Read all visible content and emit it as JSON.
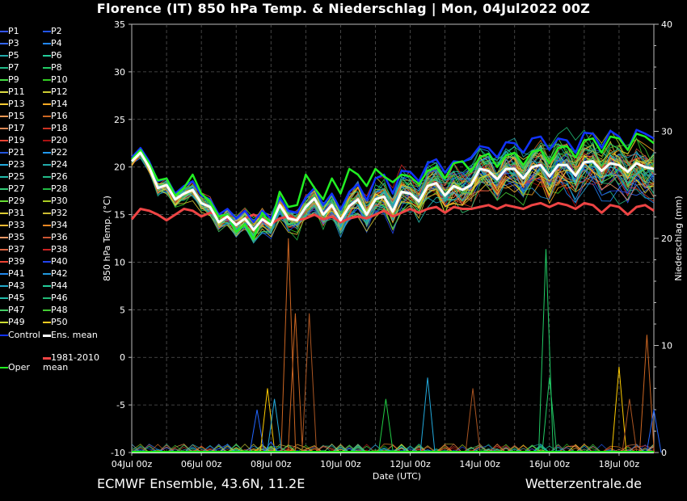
{
  "title": "Florence  (IT)  850 hPa Temp. & Niederschlag | Mon, 04Jul2022 00Z",
  "footer_left": "ECMWF Ensemble, 43.6N, 11.2E",
  "footer_right": "Wetterzentrale.de",
  "chart_data": {
    "type": "line",
    "xlabel": "Date (UTC)",
    "ylabel": "850 hPa Temp. (°C)",
    "y2label": "Niederschlag (mm)",
    "ylim": [
      -10,
      35
    ],
    "y2lim": [
      0,
      40
    ],
    "yticks": [
      "-10",
      "-5",
      "0",
      "5",
      "10",
      "15",
      "20",
      "25",
      "30",
      "35"
    ],
    "y2ticks": [
      "0",
      "10",
      "20",
      "30",
      "40"
    ],
    "xticks": [
      "04Jul 00z",
      "06Jul 00z",
      "08Jul 00z",
      "10Jul 00z",
      "12Jul 00z",
      "14Jul 00z",
      "16Jul 00z",
      "18Jul 00z"
    ],
    "grid": true,
    "x_hours": [
      0,
      6,
      12,
      18,
      24,
      30,
      36,
      42,
      48,
      54,
      60,
      66,
      72,
      78,
      84,
      90,
      96,
      102,
      108,
      114,
      120,
      126,
      132,
      138,
      144,
      150,
      156,
      162,
      168,
      174,
      180,
      186,
      192,
      198,
      204,
      210,
      216,
      222,
      228,
      234,
      240,
      246,
      252,
      258,
      264,
      270,
      276,
      282,
      288,
      294,
      300,
      306,
      312,
      318,
      324,
      330,
      336,
      342,
      348,
      354,
      360
    ],
    "ens_mean": [
      20.6,
      21.5,
      20.0,
      17.8,
      18.1,
      16.6,
      17.2,
      17.6,
      16.2,
      15.8,
      14.2,
      14.8,
      13.9,
      14.6,
      13.4,
      14.5,
      13.9,
      16.0,
      14.6,
      14.4,
      15.8,
      16.7,
      15.0,
      16.0,
      14.4,
      15.9,
      16.6,
      15.0,
      16.6,
      16.9,
      15.3,
      17.4,
      17.2,
      16.4,
      18.0,
      18.3,
      17.0,
      18.0,
      17.6,
      18.1,
      19.8,
      19.6,
      18.7,
      19.8,
      19.8,
      18.8,
      20.0,
      20.2,
      19.0,
      20.2,
      20.2,
      19.1,
      20.5,
      20.6,
      19.6,
      20.4,
      20.2,
      19.5,
      20.4,
      20.0,
      19.8
    ],
    "control": [
      21.0,
      22.0,
      20.6,
      18.5,
      18.8,
      17.2,
      18.0,
      18.5,
      17.0,
      16.6,
      15.0,
      15.6,
      14.6,
      15.4,
      14.2,
      15.4,
      14.6,
      16.8,
      15.4,
      15.2,
      16.8,
      17.8,
      16.0,
      17.2,
      15.5,
      17.4,
      18.2,
      16.5,
      18.8,
      19.2,
      17.2,
      19.6,
      19.5,
      18.5,
      20.4,
      20.8,
      19.4,
      20.6,
      20.5,
      21.0,
      22.2,
      22.0,
      21.0,
      22.6,
      22.5,
      21.5,
      23.0,
      23.2,
      21.8,
      23.0,
      22.8,
      21.5,
      23.6,
      23.5,
      22.0,
      23.8,
      23.2,
      21.8,
      23.9,
      23.5,
      23.0
    ],
    "oper": [
      20.8,
      21.8,
      20.4,
      18.6,
      18.8,
      17.0,
      17.8,
      19.2,
      17.2,
      16.4,
      14.8,
      15.0,
      13.2,
      14.0,
      12.4,
      15.2,
      14.0,
      17.4,
      15.8,
      16.0,
      19.2,
      17.8,
      16.6,
      18.8,
      17.2,
      19.8,
      19.2,
      18.0,
      19.8,
      19.0,
      18.4,
      19.2,
      19.0,
      18.2,
      19.6,
      20.0,
      18.8,
      20.4,
      20.6,
      19.5,
      21.0,
      21.4,
      20.0,
      21.2,
      21.5,
      20.2,
      21.6,
      21.8,
      20.4,
      22.0,
      22.2,
      21.0,
      22.8,
      23.0,
      21.5,
      23.2,
      23.0,
      21.8,
      23.5,
      23.2,
      22.5
    ],
    "clim_1981_2010": [
      14.5,
      15.6,
      15.4,
      15.0,
      14.4,
      15.0,
      15.6,
      15.4,
      14.8,
      15.2,
      15.0,
      14.6,
      14.0,
      14.6,
      15.0,
      14.6,
      14.0,
      14.6,
      14.8,
      14.4,
      14.6,
      15.0,
      14.5,
      14.8,
      14.2,
      14.6,
      14.8,
      14.6,
      15.0,
      15.4,
      14.8,
      15.2,
      15.6,
      15.2,
      15.6,
      15.8,
      15.2,
      15.8,
      15.6,
      15.6,
      15.8,
      16.0,
      15.6,
      16.0,
      15.8,
      15.6,
      16.0,
      16.2,
      15.8,
      16.2,
      16.0,
      15.6,
      16.2,
      16.0,
      15.2,
      16.0,
      15.8,
      15.0,
      15.8,
      16.0,
      15.4
    ],
    "precip_peaks": [
      {
        "day": 7.6,
        "mm": 4,
        "color": "#2266ff"
      },
      {
        "day": 7.9,
        "mm": 6,
        "color": "#ffcc00"
      },
      {
        "day": 8.0,
        "mm": 1,
        "color": "#2266ff"
      },
      {
        "day": 8.1,
        "mm": 5,
        "color": "#22aadd"
      },
      {
        "day": 8.5,
        "mm": 20,
        "color": "#cc6622"
      },
      {
        "day": 8.7,
        "mm": 13,
        "color": "#cc6622"
      },
      {
        "day": 9.1,
        "mm": 13,
        "color": "#aa5522"
      },
      {
        "day": 11.3,
        "mm": 5,
        "color": "#22cc44"
      },
      {
        "day": 12.5,
        "mm": 7,
        "color": "#22aadd"
      },
      {
        "day": 13.8,
        "mm": 6,
        "color": "#aa5522"
      },
      {
        "day": 15.9,
        "mm": 19,
        "color": "#22cc66"
      },
      {
        "day": 16.0,
        "mm": 7,
        "color": "#22cc66"
      },
      {
        "day": 18.0,
        "mm": 8,
        "color": "#ffcc00"
      },
      {
        "day": 18.3,
        "mm": 5,
        "color": "#aa5522"
      },
      {
        "day": 18.8,
        "mm": 11,
        "color": "#cc6622"
      },
      {
        "day": 19.0,
        "mm": 4,
        "color": "#2266ff"
      }
    ],
    "legend": [
      {
        "label": "P1",
        "color": "#3355ff"
      },
      {
        "label": "P2",
        "color": "#2255ee"
      },
      {
        "label": "P3",
        "color": "#3366ff"
      },
      {
        "label": "P4",
        "color": "#2288ff"
      },
      {
        "label": "P5",
        "color": "#22aaaa"
      },
      {
        "label": "P6",
        "color": "#22cc99"
      },
      {
        "label": "P7",
        "color": "#22bb88"
      },
      {
        "label": "P8",
        "color": "#22cc66"
      },
      {
        "label": "P9",
        "color": "#44dd44"
      },
      {
        "label": "P10",
        "color": "#33cc22"
      },
      {
        "label": "P11",
        "color": "#dddd44"
      },
      {
        "label": "P12",
        "color": "#cccc33"
      },
      {
        "label": "P13",
        "color": "#ffcc33"
      },
      {
        "label": "P14",
        "color": "#ffaa22"
      },
      {
        "label": "P15",
        "color": "#ee9955"
      },
      {
        "label": "P16",
        "color": "#cc6622"
      },
      {
        "label": "P17",
        "color": "#dd8855"
      },
      {
        "label": "P18",
        "color": "#cc3322"
      },
      {
        "label": "P19",
        "color": "#ee4433"
      },
      {
        "label": "P20",
        "color": "#aa1111"
      },
      {
        "label": "P21",
        "color": "#2255dd"
      },
      {
        "label": "P22",
        "color": "#2299ee"
      },
      {
        "label": "P23",
        "color": "#22aadd"
      },
      {
        "label": "P24",
        "color": "#22aaaa"
      },
      {
        "label": "P25",
        "color": "#22bbaa"
      },
      {
        "label": "P26",
        "color": "#22bb88"
      },
      {
        "label": "P27",
        "color": "#33cc77"
      },
      {
        "label": "P28",
        "color": "#22bb44"
      },
      {
        "label": "P29",
        "color": "#66dd33"
      },
      {
        "label": "P30",
        "color": "#aacc22"
      },
      {
        "label": "P31",
        "color": "#ddcc33"
      },
      {
        "label": "P32",
        "color": "#ccbb33"
      },
      {
        "label": "P33",
        "color": "#ffbb33"
      },
      {
        "label": "P34",
        "color": "#ee8822"
      },
      {
        "label": "P35",
        "color": "#ee9966"
      },
      {
        "label": "P36",
        "color": "#cc5533"
      },
      {
        "label": "P37",
        "color": "#dd6644"
      },
      {
        "label": "P38",
        "color": "#cc2222"
      },
      {
        "label": "P39",
        "color": "#ee4433"
      },
      {
        "label": "P40",
        "color": "#2244ee"
      },
      {
        "label": "P41",
        "color": "#2288ee"
      },
      {
        "label": "P42",
        "color": "#2299dd"
      },
      {
        "label": "P43",
        "color": "#22aacc"
      },
      {
        "label": "P44",
        "color": "#22cc99"
      },
      {
        "label": "P45",
        "color": "#22bbaa"
      },
      {
        "label": "P46",
        "color": "#22bb77"
      },
      {
        "label": "P47",
        "color": "#44cc66"
      },
      {
        "label": "P48",
        "color": "#44cc33"
      },
      {
        "label": "P49",
        "color": "#ccdd33"
      },
      {
        "label": "P50",
        "color": "#ffcc22"
      },
      {
        "label": "Control",
        "color": "#1133ff"
      },
      {
        "label": "Ens. mean",
        "color": "#ffffff"
      },
      {
        "label": "1981-2010 mean",
        "color": "#ee4444"
      },
      {
        "label": "Oper",
        "color": "#22ee22"
      }
    ]
  }
}
